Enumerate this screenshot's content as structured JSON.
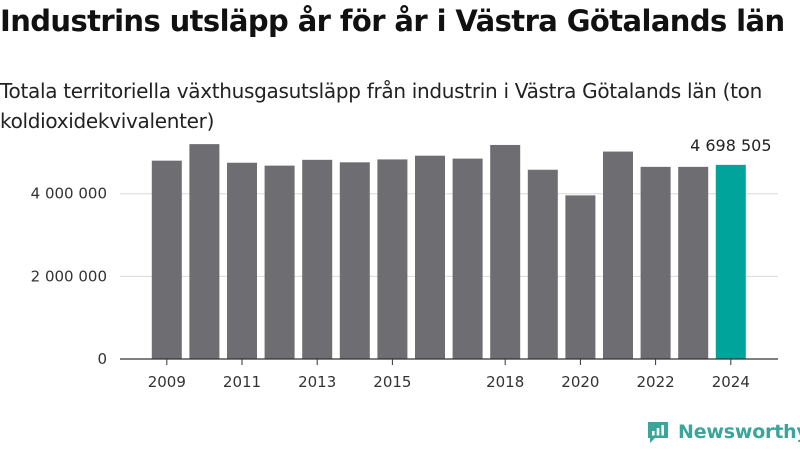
{
  "title": "Industrins utsläpp år för år i Västra Götalands län",
  "subtitle": "Totala territoriella växthusgasutsläpp från industrin i Västra Götalands län (ton koldioxidekvivalenter)",
  "brand": {
    "name": "Newsworthy",
    "color": "#3aa59a",
    "icon": "newsworthy-logo-icon"
  },
  "colors": {
    "bar": "#6e6d72",
    "highlight": "#00a49a",
    "grid": "#d9d9d9",
    "axis": "#333333"
  },
  "chart_data": {
    "type": "bar",
    "categories": [
      "2009",
      "2010",
      "2011",
      "2012",
      "2013",
      "2014",
      "2015",
      "2016",
      "2017",
      "2018",
      "2019",
      "2020",
      "2021",
      "2022",
      "2023",
      "2024"
    ],
    "values": [
      4800000,
      5200000,
      4750000,
      4680000,
      4820000,
      4760000,
      4830000,
      4920000,
      4850000,
      5180000,
      4580000,
      3960000,
      5020000,
      4650000,
      4650000,
      4698505
    ],
    "x_tick_labels": [
      "2009",
      "2011",
      "2013",
      "2015",
      "2018",
      "2020",
      "2022",
      "2024"
    ],
    "y_ticks": [
      0,
      2000000,
      4000000
    ],
    "y_tick_labels": [
      "0",
      "2 000 000",
      "4 000 000"
    ],
    "ylim": [
      0,
      5300000
    ],
    "highlight_category": "2024",
    "highlight_label": "4 698 505",
    "grid": true,
    "xlabel": "",
    "ylabel": ""
  }
}
